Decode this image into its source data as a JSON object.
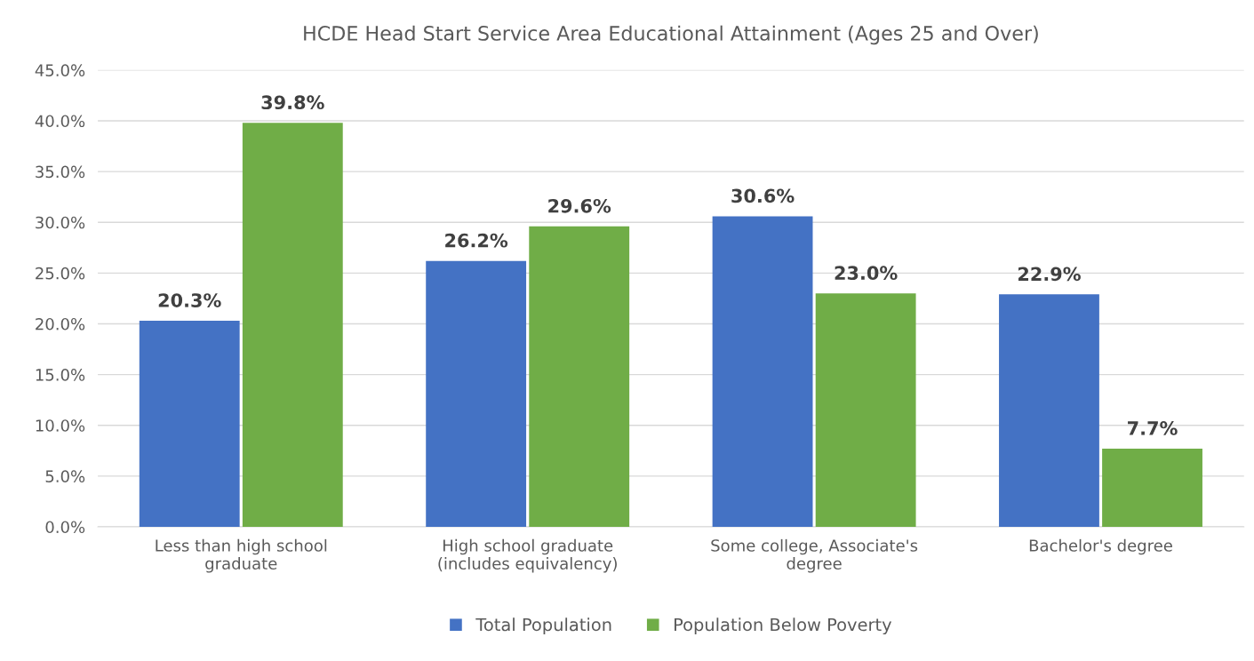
{
  "chart_data": {
    "type": "bar",
    "title": "HCDE Head Start Service Area Educational Attainment (Ages 25 and Over)",
    "categories": [
      "Less than high school\ngraduate",
      "High school graduate\n(includes equivalency)",
      "Some college, Associate's\ndegree",
      "Bachelor's degree"
    ],
    "series": [
      {
        "name": "Total Population",
        "color": "#4472c4",
        "values": [
          20.3,
          26.2,
          30.6,
          22.9
        ],
        "value_labels": [
          "20.3%",
          "26.2%",
          "30.6%",
          "22.9%"
        ]
      },
      {
        "name": "Population Below Poverty",
        "color": "#70ad47",
        "values": [
          39.8,
          29.6,
          23.0,
          7.7
        ],
        "value_labels": [
          "39.8%",
          "29.6%",
          "23.0%",
          "7.7%"
        ]
      }
    ],
    "ylim": [
      0,
      45
    ],
    "yticks": [
      {
        "value": 0,
        "label": "0.0%"
      },
      {
        "value": 5,
        "label": "5.0%"
      },
      {
        "value": 10,
        "label": "10.0%"
      },
      {
        "value": 15,
        "label": "15.0%"
      },
      {
        "value": 20,
        "label": "20.0%"
      },
      {
        "value": 25,
        "label": "25.0%"
      },
      {
        "value": 30,
        "label": "30.0%"
      },
      {
        "value": 35,
        "label": "35.0%"
      },
      {
        "value": 40,
        "label": "40.0%"
      },
      {
        "value": 45,
        "label": "45.0%"
      }
    ],
    "grid": "y",
    "legend": "bottom"
  }
}
